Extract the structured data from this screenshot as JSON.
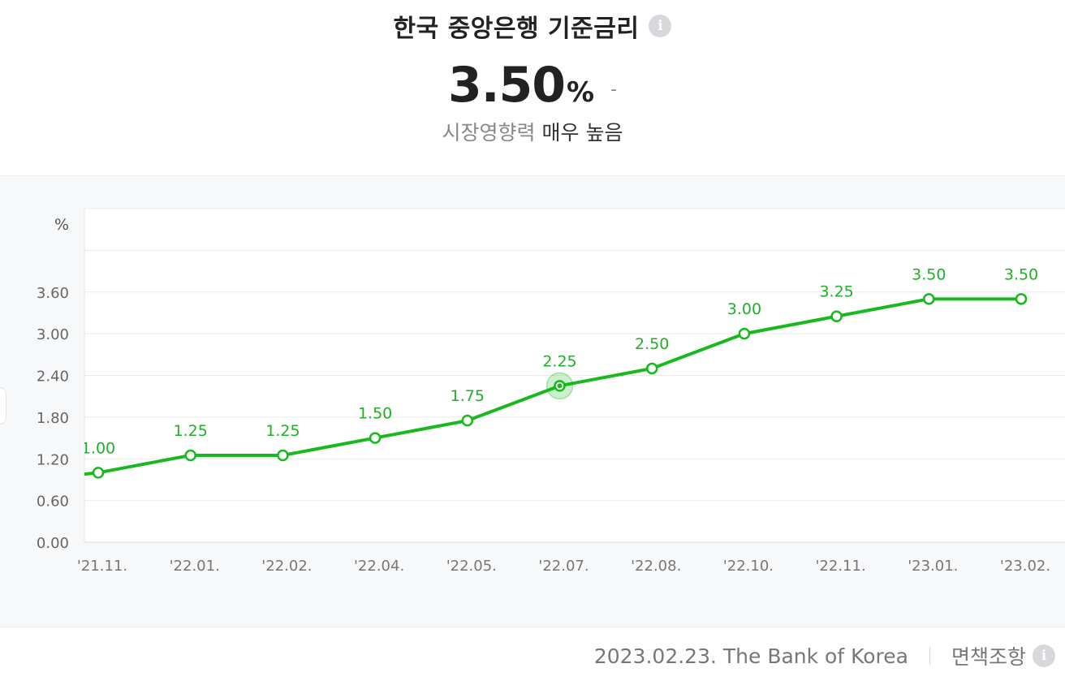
{
  "header": {
    "title": "한국 중앙은행 기준금리",
    "value": "3.50",
    "unit": "%",
    "change": "-",
    "impact_label": "시장영향력",
    "impact_value": "매우 높음"
  },
  "chart_data": {
    "type": "line",
    "categories": [
      "'21.11.",
      "'22.01.",
      "'22.02.",
      "'22.04.",
      "'22.05.",
      "'22.07.",
      "'22.08.",
      "'22.10.",
      "'22.11.",
      "'23.01.",
      "'23.02."
    ],
    "series": [
      {
        "values": [
          1.0,
          1.25,
          1.25,
          1.5,
          1.75,
          2.25,
          2.5,
          3.0,
          3.25,
          3.5,
          3.5
        ]
      }
    ],
    "data_labels": [
      "1.00",
      "1.25",
      "1.25",
      "1.50",
      "1.75",
      "2.25",
      "2.50",
      "3.00",
      "3.25",
      "3.50",
      "3.50"
    ],
    "ylabel": "%",
    "yticks": [
      "0.00",
      "0.60",
      "1.20",
      "1.80",
      "2.40",
      "3.00",
      "3.60"
    ],
    "ylim": [
      0,
      4.8
    ],
    "highlighted_index": 5,
    "line_color": "#17b91c",
    "grid": true
  },
  "footer": {
    "source": "2023.02.23. The Bank of Korea",
    "disclaimer": "면책조항"
  }
}
